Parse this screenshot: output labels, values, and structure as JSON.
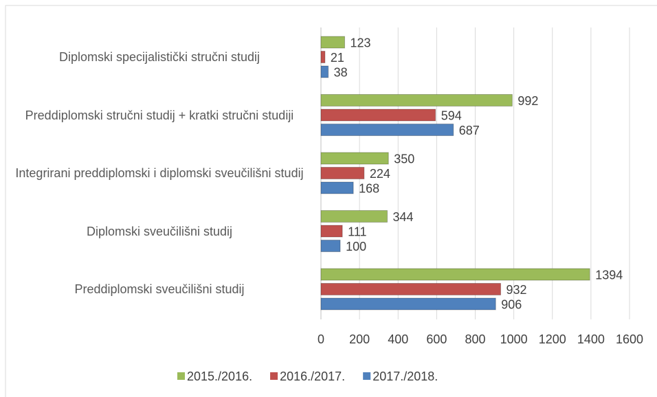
{
  "chart_data": {
    "type": "bar",
    "orientation": "horizontal",
    "categories": [
      "Diplomski specijalistički stručni studij",
      "Preddiplomski stručni studij + kratki stručni studiji",
      "Integrirani preddiplomski i diplomski sveučilišni  studij",
      "Diplomski sveučilišni studij",
      "Preddiplomski sveučilišni studij"
    ],
    "series": [
      {
        "name": "2015./2016.",
        "color": "#9bbb59",
        "values": [
          123,
          992,
          350,
          344,
          1394
        ]
      },
      {
        "name": "2016./2017.",
        "color": "#c0504d",
        "values": [
          21,
          594,
          224,
          111,
          932
        ]
      },
      {
        "name": "2017./2018.",
        "color": "#4f81bd",
        "values": [
          38,
          687,
          168,
          100,
          906
        ]
      }
    ],
    "xlim": [
      0,
      1600
    ],
    "xticks": [
      0,
      200,
      400,
      600,
      800,
      1000,
      1200,
      1400,
      1600
    ],
    "grid": true,
    "legend": "bottom"
  }
}
